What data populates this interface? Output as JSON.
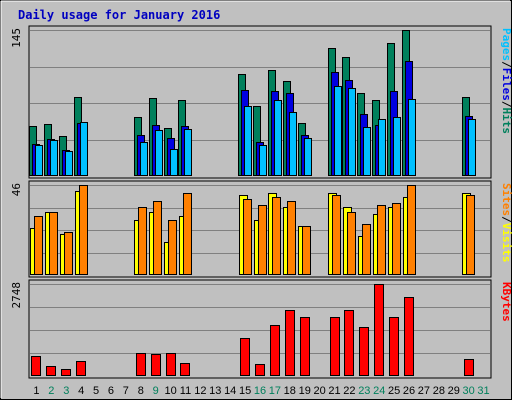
{
  "chart_data": {
    "type": "bar",
    "title": "Daily usage for January 2016",
    "days": [
      "1",
      "2",
      "3",
      "4",
      "5",
      "6",
      "7",
      "8",
      "9",
      "10",
      "11",
      "12",
      "13",
      "14",
      "15",
      "16",
      "17",
      "18",
      "19",
      "20",
      "21",
      "22",
      "23",
      "24",
      "25",
      "26",
      "27",
      "28",
      "29",
      "30",
      "31"
    ],
    "weekend_days": [
      "2",
      "3",
      "9",
      "16",
      "17",
      "23",
      "24",
      "30",
      "31"
    ],
    "colors": {
      "hits": "#00805c",
      "files": "#0000e0",
      "pages": "#00c0ff",
      "visits": "#ffff00",
      "sites": "#ff8000",
      "kbytes": "#ff0000",
      "plot_bg": "#c0c0c0",
      "frame_bg": "#ffffff",
      "grid": "#808080",
      "day_weekday": "#000000",
      "day_weekend": "#00805c",
      "title": "#0000c0"
    },
    "panels": [
      {
        "id": "hits-files-pages",
        "max_label": "145",
        "max": 145,
        "legend": [
          {
            "text": "Hits",
            "color": "#00805c"
          },
          {
            "text": "/",
            "color": "#000000"
          },
          {
            "text": "Files",
            "color": "#0000e0"
          },
          {
            "text": "/",
            "color": "#000000"
          },
          {
            "text": "Pages",
            "color": "#00c0ff"
          }
        ],
        "series": [
          {
            "name": "Hits",
            "color": "#00805c",
            "values": [
              50,
              52,
              40,
              78,
              0,
              0,
              0,
              59,
              77,
              48,
              75,
              0,
              0,
              0,
              101,
              70,
              105,
              94,
              53,
              0,
              127,
              118,
              82,
              75,
              132,
              145,
              0,
              0,
              0,
              78,
              0
            ]
          },
          {
            "name": "Files",
            "color": "#0000e0",
            "values": [
              32,
              37,
              26,
              53,
              0,
              0,
              0,
              41,
              51,
              38,
              50,
              0,
              0,
              0,
              85,
              34,
              84,
              82,
              41,
              0,
              103,
              95,
              62,
              51,
              84,
              114,
              0,
              0,
              0,
              60,
              0
            ]
          },
          {
            "name": "Pages",
            "color": "#00c0ff",
            "values": [
              31,
              36,
              25,
              54,
              0,
              0,
              0,
              34,
              46,
              27,
              47,
              0,
              0,
              0,
              70,
              31,
              75,
              64,
              38,
              0,
              89,
              87,
              49,
              57,
              59,
              76,
              0,
              0,
              0,
              57,
              0
            ]
          }
        ]
      },
      {
        "id": "visits-sites",
        "max_label": "46",
        "max": 46,
        "legend": [
          {
            "text": "Visits",
            "color": "#ffff00"
          },
          {
            "text": "/",
            "color": "#000000"
          },
          {
            "text": "Sites",
            "color": "#ff8000"
          }
        ],
        "series": [
          {
            "name": "Visits",
            "color": "#ffff00",
            "values": [
              24,
              32,
              21,
              43,
              0,
              0,
              0,
              28,
              32,
              17,
              30,
              0,
              0,
              0,
              41,
              28,
              42,
              35,
              25,
              0,
              42,
              35,
              20,
              31,
              35,
              40,
              0,
              0,
              0,
              42,
              0
            ]
          },
          {
            "name": "Sites",
            "color": "#ff8000",
            "values": [
              30,
              32,
              22,
              46,
              0,
              0,
              0,
              35,
              38,
              28,
              42,
              0,
              0,
              0,
              39,
              36,
              40,
              38,
              25,
              0,
              41,
              32,
              26,
              36,
              37,
              46,
              0,
              0,
              0,
              41,
              0
            ]
          }
        ]
      },
      {
        "id": "kbytes",
        "max_label": "2748",
        "max": 2748,
        "legend": [
          {
            "text": "KBytes",
            "color": "#ff0000"
          }
        ],
        "series": [
          {
            "name": "KBytes",
            "color": "#ff0000",
            "values": [
              610,
              300,
              220,
              440,
              0,
              0,
              0,
              700,
              650,
              690,
              400,
              0,
              0,
              0,
              1130,
              350,
              1510,
              1980,
              1760,
              0,
              1770,
              1960,
              1450,
              2748,
              1760,
              2350,
              0,
              0,
              0,
              510,
              0
            ]
          }
        ]
      }
    ]
  }
}
